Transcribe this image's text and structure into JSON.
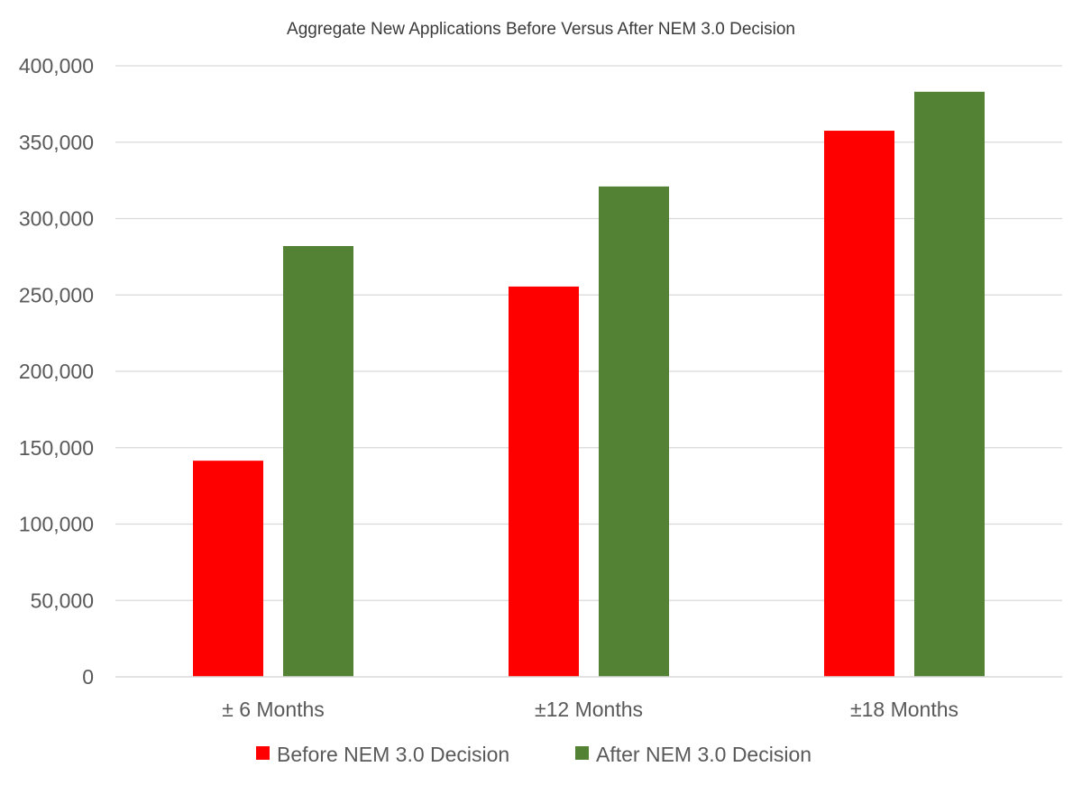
{
  "chart_data": {
    "type": "bar",
    "title": "Aggregate New Applications Before Versus After NEM 3.0 Decision",
    "xlabel": "",
    "ylabel": "",
    "categories": [
      "± 6 Months",
      "±12 Months",
      "±18 Months"
    ],
    "series": [
      {
        "name": "Before NEM 3.0 Decision",
        "color": "#ff0000",
        "values": [
          141500,
          255500,
          357500
        ]
      },
      {
        "name": "After NEM 3.0 Decision",
        "color": "#548235",
        "values": [
          282000,
          321000,
          383000
        ]
      }
    ],
    "ylim": [
      0,
      400000
    ],
    "yticks": [
      0,
      50000,
      100000,
      150000,
      200000,
      250000,
      300000,
      350000,
      400000
    ],
    "ytick_labels": [
      "0",
      "50,000",
      "100,000",
      "150,000",
      "200,000",
      "250,000",
      "300,000",
      "350,000",
      "400,000"
    ],
    "grid": true,
    "legend_position": "bottom"
  }
}
